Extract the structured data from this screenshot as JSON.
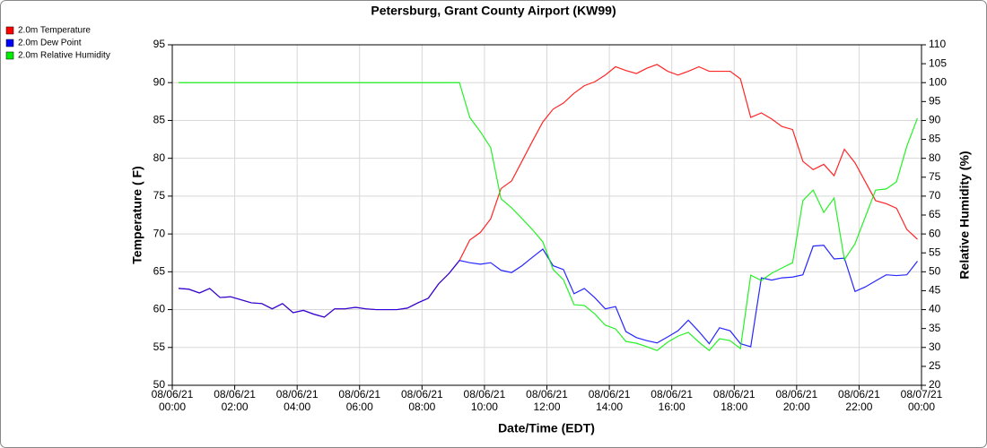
{
  "chart_data": {
    "type": "line",
    "title": "Petersburg, Grant County Airport (KW99)",
    "xlabel": "Date/Time (EDT)",
    "ylabel": "Temperature ( F)",
    "y2label": "Relative Humidity (%)",
    "grid": true,
    "legend": "top-left",
    "x": [
      0.2,
      0.53,
      0.87,
      1.2,
      1.53,
      1.87,
      2.2,
      2.53,
      2.87,
      3.2,
      3.53,
      3.87,
      4.2,
      4.53,
      4.87,
      5.2,
      5.53,
      5.87,
      6.2,
      6.53,
      6.87,
      7.2,
      7.53,
      7.87,
      8.2,
      8.53,
      8.87,
      9.2,
      9.53,
      9.87,
      10.2,
      10.53,
      10.87,
      11.2,
      11.53,
      11.87,
      12.2,
      12.53,
      12.87,
      13.2,
      13.53,
      13.87,
      14.2,
      14.53,
      14.87,
      15.2,
      15.53,
      15.87,
      16.2,
      16.53,
      16.87,
      17.2,
      17.53,
      17.87,
      18.2,
      18.53,
      18.87,
      19.2,
      19.53,
      19.87,
      20.2,
      20.53,
      20.87,
      21.2,
      21.53,
      21.87,
      22.2,
      22.53,
      22.87,
      23.2,
      23.53,
      23.87
    ],
    "xlim": [
      0,
      24
    ],
    "xticks": [
      {
        "value": 0,
        "label": "08/06/21\n00:00"
      },
      {
        "value": 2,
        "label": "08/06/21\n02:00"
      },
      {
        "value": 4,
        "label": "08/06/21\n04:00"
      },
      {
        "value": 6,
        "label": "08/06/21\n06:00"
      },
      {
        "value": 8,
        "label": "08/06/21\n08:00"
      },
      {
        "value": 10,
        "label": "08/06/21\n10:00"
      },
      {
        "value": 12,
        "label": "08/06/21\n12:00"
      },
      {
        "value": 14,
        "label": "08/06/21\n14:00"
      },
      {
        "value": 16,
        "label": "08/06/21\n16:00"
      },
      {
        "value": 18,
        "label": "08/06/21\n18:00"
      },
      {
        "value": 20,
        "label": "08/06/21\n20:00"
      },
      {
        "value": 22,
        "label": "08/06/21\n22:00"
      },
      {
        "value": 24,
        "label": "08/07/21\n00:00"
      }
    ],
    "ylim": [
      50,
      95
    ],
    "yticks": [
      50,
      55,
      60,
      65,
      70,
      75,
      80,
      85,
      90,
      95
    ],
    "y2lim": [
      20,
      110
    ],
    "y2ticks": [
      20,
      25,
      30,
      35,
      40,
      45,
      50,
      55,
      60,
      65,
      70,
      75,
      80,
      85,
      90,
      95,
      100,
      105,
      110
    ],
    "series": [
      {
        "name": "2.0m Temperature",
        "color": "#ff0000",
        "values": [
          62.8,
          62.7,
          62.2,
          62.8,
          61.6,
          61.7,
          61.3,
          60.9,
          60.8,
          60.1,
          60.8,
          59.6,
          59.9,
          59.4,
          59.0,
          60.1,
          60.1,
          60.3,
          60.1,
          60.0,
          60.0,
          60.0,
          60.2,
          60.9,
          61.5,
          63.4,
          64.8,
          66.5,
          69.2,
          70.2,
          72.0,
          76.0,
          77.0,
          79.6,
          82.2,
          84.8,
          86.5,
          87.3,
          88.6,
          89.6,
          90.1,
          91.0,
          92.1,
          91.6,
          91.2,
          91.9,
          92.4,
          91.5,
          91.0,
          91.5,
          92.1,
          91.5,
          91.5,
          91.5,
          90.5,
          85.4,
          86.0,
          85.2,
          84.2,
          83.8,
          79.6,
          78.5,
          79.2,
          77.7,
          81.2,
          79.4,
          76.9,
          74.4,
          74.0,
          73.4,
          70.6,
          69.3
        ]
      },
      {
        "name": "2.0m Dew Point",
        "color": "#0000ff",
        "values": [
          62.8,
          62.7,
          62.2,
          62.8,
          61.6,
          61.7,
          61.3,
          60.9,
          60.8,
          60.1,
          60.8,
          59.6,
          59.9,
          59.4,
          59.0,
          60.1,
          60.1,
          60.3,
          60.1,
          60.0,
          60.0,
          60.0,
          60.2,
          60.9,
          61.5,
          63.4,
          64.8,
          66.5,
          66.2,
          66.0,
          66.2,
          65.2,
          64.9,
          65.8,
          66.9,
          68.0,
          65.8,
          65.3,
          62.1,
          62.8,
          61.6,
          60.1,
          60.4,
          57.1,
          56.3,
          55.9,
          55.6,
          56.4,
          57.2,
          58.6,
          57.1,
          55.5,
          57.6,
          57.2,
          55.5,
          55.1,
          64.2,
          63.9,
          64.2,
          64.3,
          64.6,
          68.4,
          68.5,
          66.7,
          66.8,
          62.4,
          63.0,
          63.8,
          64.6,
          64.5,
          64.6,
          66.4
        ]
      },
      {
        "name": "2.0m Relative Humidity",
        "color": "#00ee00",
        "axis": "y2",
        "values": [
          100,
          100,
          100,
          100,
          100,
          100,
          100,
          100,
          100,
          100,
          100,
          100,
          100,
          100,
          100,
          100,
          100,
          100,
          100,
          100,
          100,
          100,
          100,
          100,
          100,
          100,
          100,
          100,
          90.8,
          87.0,
          82.8,
          69.3,
          66.9,
          64.1,
          61.2,
          57.9,
          50.6,
          47.9,
          41.3,
          41.1,
          38.9,
          35.9,
          34.9,
          31.6,
          31.1,
          30.2,
          29.2,
          31.4,
          33.0,
          34.0,
          31.4,
          29.2,
          32.3,
          31.8,
          29.7,
          49.1,
          47.7,
          49.6,
          51.0,
          52.4,
          68.8,
          71.6,
          65.7,
          69.5,
          53.2,
          57.4,
          64.5,
          71.6,
          71.9,
          73.8,
          83.2,
          90.6
        ]
      }
    ]
  }
}
